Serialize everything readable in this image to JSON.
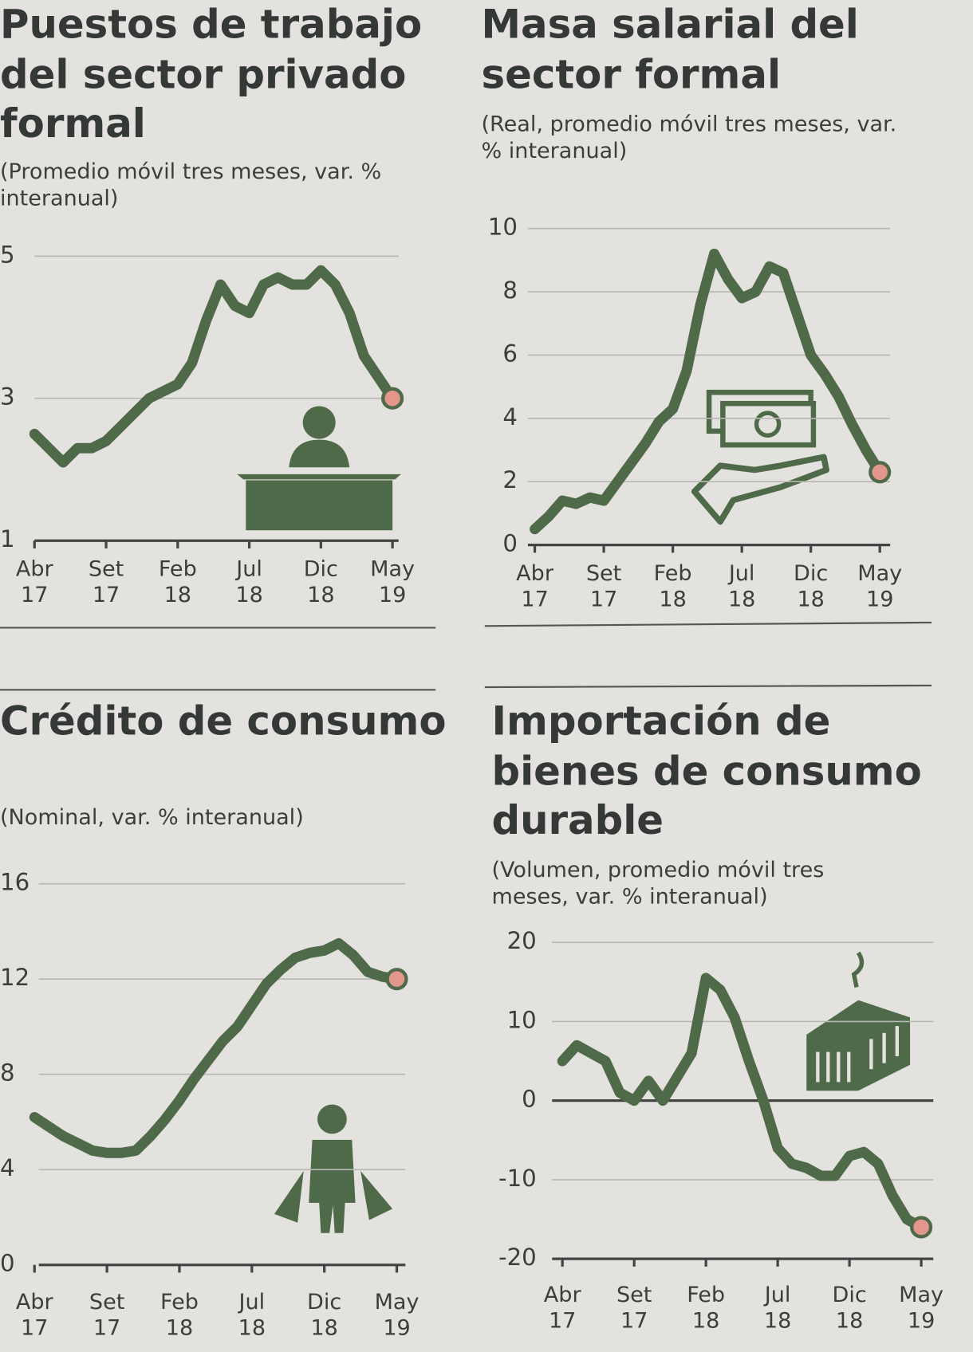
{
  "chart_data": [
    {
      "type": "line",
      "title": "Puestos de trabajo del sector privado formal",
      "subtitle": "(Promedio móvil tres meses, var. % interanual)",
      "categories": [
        "Abr 17",
        null,
        null,
        null,
        null,
        "Set 17",
        null,
        null,
        null,
        null,
        "Feb 18",
        null,
        null,
        null,
        null,
        "Jul 18",
        null,
        null,
        null,
        null,
        "Dic 18",
        null,
        null,
        null,
        null,
        "May 19"
      ],
      "values": [
        2.5,
        2.3,
        2.1,
        2.3,
        2.3,
        2.4,
        2.6,
        2.8,
        3.0,
        3.1,
        3.2,
        3.5,
        4.1,
        4.6,
        4.3,
        4.2,
        4.6,
        4.7,
        4.6,
        4.6,
        4.8,
        4.6,
        4.2,
        3.6,
        3.3,
        3.0
      ],
      "color": "#4f6a49",
      "end_marker_color": "#e3968b",
      "ylim": [
        1,
        5
      ],
      "yticks": [
        1,
        3,
        5
      ],
      "grid": true
    },
    {
      "type": "line",
      "title": "Masa salarial del sector formal",
      "subtitle": "(Real, promedio móvil tres meses, var. % interanual)",
      "categories": [
        "Abr 17",
        null,
        null,
        null,
        null,
        "Set 17",
        null,
        null,
        null,
        null,
        "Feb 18",
        null,
        null,
        null,
        null,
        "Jul 18",
        null,
        null,
        null,
        null,
        "Dic 18",
        null,
        null,
        null,
        null,
        "May 19"
      ],
      "values": [
        0.5,
        0.9,
        1.4,
        1.3,
        1.5,
        1.4,
        2.0,
        2.6,
        3.2,
        3.9,
        4.3,
        5.5,
        7.6,
        9.2,
        8.4,
        7.8,
        8.0,
        8.8,
        8.6,
        7.3,
        6.0,
        5.4,
        4.7,
        3.8,
        3.0,
        2.3
      ],
      "color": "#4f6a49",
      "end_marker_color": "#e3968b",
      "ylim": [
        0,
        10
      ],
      "yticks": [
        0,
        2,
        4,
        6,
        8,
        10
      ],
      "grid": true
    },
    {
      "type": "line",
      "title": "Crédito de consumo",
      "subtitle": "(Nominal, var. % interanual)",
      "categories": [
        "Abr 17",
        null,
        null,
        null,
        null,
        "Set 17",
        null,
        null,
        null,
        null,
        "Feb 18",
        null,
        null,
        null,
        null,
        "Jul 18",
        null,
        null,
        null,
        null,
        "Dic 18",
        null,
        null,
        null,
        null,
        "May 19"
      ],
      "values": [
        6.2,
        5.8,
        5.4,
        5.1,
        4.8,
        4.7,
        4.7,
        4.8,
        5.4,
        6.1,
        6.9,
        7.8,
        8.6,
        9.4,
        10.0,
        10.9,
        11.8,
        12.4,
        12.9,
        13.1,
        13.2,
        13.5,
        13.0,
        12.3,
        12.1,
        12.0
      ],
      "color": "#4f6a49",
      "end_marker_color": "#e3968b",
      "ylim": [
        0,
        16
      ],
      "yticks": [
        0,
        4,
        8,
        12,
        16
      ],
      "grid": true
    },
    {
      "type": "line",
      "title": "Importación de bienes de consumo durable",
      "subtitle": "(Volumen, promedio móvil tres meses, var. % interanual)",
      "categories": [
        "Abr 17",
        null,
        null,
        null,
        null,
        "Set 17",
        null,
        null,
        null,
        null,
        "Feb 18",
        null,
        null,
        null,
        null,
        "Jul 18",
        null,
        null,
        null,
        null,
        "Dic 18",
        null,
        null,
        null,
        null,
        "May 19"
      ],
      "values": [
        5,
        7,
        6,
        5,
        1,
        0,
        2.5,
        0,
        3,
        6,
        15.5,
        14,
        10.5,
        5,
        0,
        -6,
        -8,
        -8.5,
        -9.5,
        -9.5,
        -7,
        -6.5,
        -8,
        -12,
        -15,
        -16
      ],
      "color": "#4f6a49",
      "end_marker_color": "#e3968b",
      "ylim": [
        -20,
        20
      ],
      "yticks": [
        -20,
        -10,
        0,
        10,
        20
      ],
      "grid": true,
      "zero_line": true
    }
  ]
}
